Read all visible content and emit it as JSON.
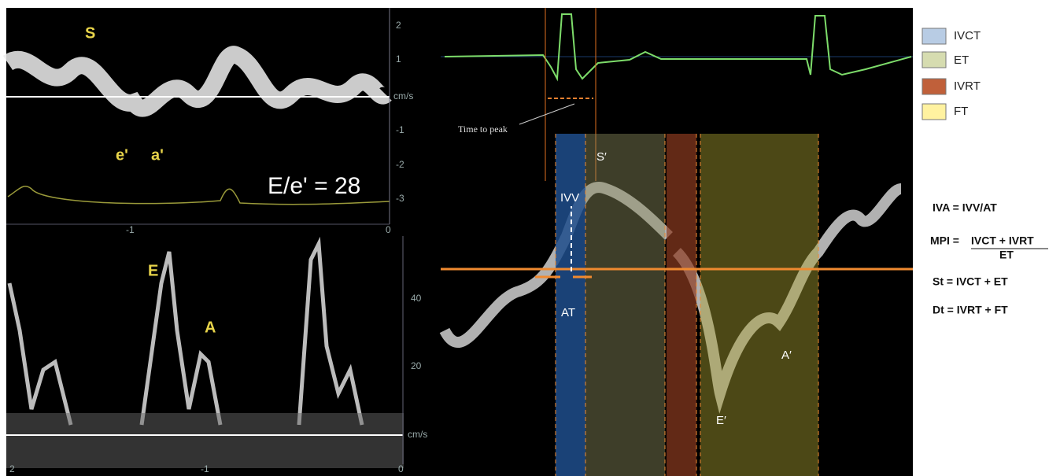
{
  "panels": {
    "tissue_doppler": {
      "labels": [
        "S",
        "e'",
        "a'"
      ],
      "ratio": "E/e' = 28",
      "y_ticks": [
        "2",
        "1",
        "cm/s",
        "-1",
        "-2",
        "-3"
      ],
      "x_ticks": [
        "-1",
        "0"
      ]
    },
    "mitral_inflow": {
      "labels": [
        "E",
        "A"
      ],
      "y_ticks": [
        "40",
        "20",
        "cm/s"
      ],
      "x_ticks": [
        "2",
        "-1",
        "0"
      ]
    },
    "timing": {
      "time_to_peak": "Time to peak",
      "labels": [
        "IVV",
        "S′",
        "AT",
        "E′",
        "A′"
      ]
    }
  },
  "legend": [
    "IVCT",
    "ET",
    "IVRT",
    "FT"
  ],
  "formulas": {
    "iva": "IVA = IVV/AT",
    "mpi_lhs": "MPI = ",
    "mpi_num": "IVCT + IVRT",
    "mpi_den": "ET",
    "st": "St = IVCT + ET",
    "dt": "Dt = IVRT + FT"
  }
}
